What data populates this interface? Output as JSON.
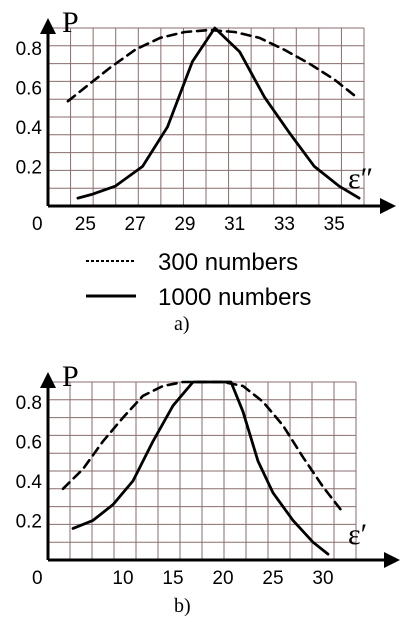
{
  "legend": {
    "entries": [
      {
        "label": "300 numbers",
        "style": "dashed"
      },
      {
        "label": "1000 numbers",
        "style": "solid"
      }
    ]
  },
  "colors": {
    "grid": "#8a6d6d",
    "ink": "#000000"
  },
  "chart_data": [
    {
      "type": "line",
      "caption": "a)",
      "ylabel": "P",
      "xlabel": "ε″",
      "origin_label": "0",
      "xlim": [
        23.5,
        37.0
      ],
      "ylim": [
        0,
        0.9
      ],
      "xticks": [
        25,
        27,
        29,
        31,
        33,
        35
      ],
      "xtick_labels": [
        "25",
        "27",
        "29",
        "31",
        "33",
        "35"
      ],
      "yticks": [
        0.2,
        0.4,
        0.6,
        0.8
      ],
      "ytick_labels": [
        "0.2",
        "0.4",
        "0.6",
        "0.8"
      ],
      "grid": true,
      "series": [
        {
          "style": "dashed",
          "x": [
            24.3,
            25,
            26,
            27,
            28,
            29,
            30,
            31,
            32,
            33,
            34,
            35,
            35.8
          ],
          "y": [
            0.53,
            0.6,
            0.7,
            0.79,
            0.85,
            0.88,
            0.89,
            0.88,
            0.85,
            0.79,
            0.72,
            0.64,
            0.56
          ]
        },
        {
          "style": "solid",
          "x": [
            24.7,
            25.3,
            26.2,
            27.3,
            28.3,
            29.3,
            30.2,
            31.2,
            32.2,
            33.2,
            34.2,
            35.2,
            36.0
          ],
          "y": [
            0.04,
            0.06,
            0.1,
            0.2,
            0.4,
            0.73,
            0.9,
            0.78,
            0.55,
            0.37,
            0.2,
            0.1,
            0.04
          ]
        }
      ]
    },
    {
      "type": "line",
      "caption": "b)",
      "ylabel": "P",
      "xlabel": "ε′",
      "origin_label": "0",
      "xlim": [
        2.5,
        36.5
      ],
      "ylim": [
        0,
        0.9
      ],
      "xticks": [
        10,
        15,
        20,
        25,
        30
      ],
      "xtick_labels": [
        "10",
        "15",
        "20",
        "25",
        "30"
      ],
      "yticks": [
        0.2,
        0.4,
        0.6,
        0.8
      ],
      "ytick_labels": [
        "0.2",
        "0.4",
        "0.6",
        "0.8"
      ],
      "grid": true,
      "series": [
        {
          "style": "dashed",
          "x": [
            4,
            6,
            8,
            10,
            12,
            14,
            16,
            18,
            20,
            22,
            24,
            26,
            28,
            30,
            32
          ],
          "y": [
            0.36,
            0.46,
            0.6,
            0.72,
            0.83,
            0.88,
            0.9,
            0.9,
            0.9,
            0.88,
            0.8,
            0.68,
            0.52,
            0.37,
            0.24
          ]
        },
        {
          "style": "solid",
          "x": [
            5,
            7,
            9,
            11,
            13,
            15,
            17,
            19,
            20.8,
            22,
            23.5,
            25,
            27,
            29,
            30.5
          ],
          "y": [
            0.16,
            0.2,
            0.28,
            0.4,
            0.6,
            0.78,
            0.9,
            0.9,
            0.9,
            0.75,
            0.5,
            0.34,
            0.2,
            0.09,
            0.03
          ]
        }
      ]
    }
  ]
}
